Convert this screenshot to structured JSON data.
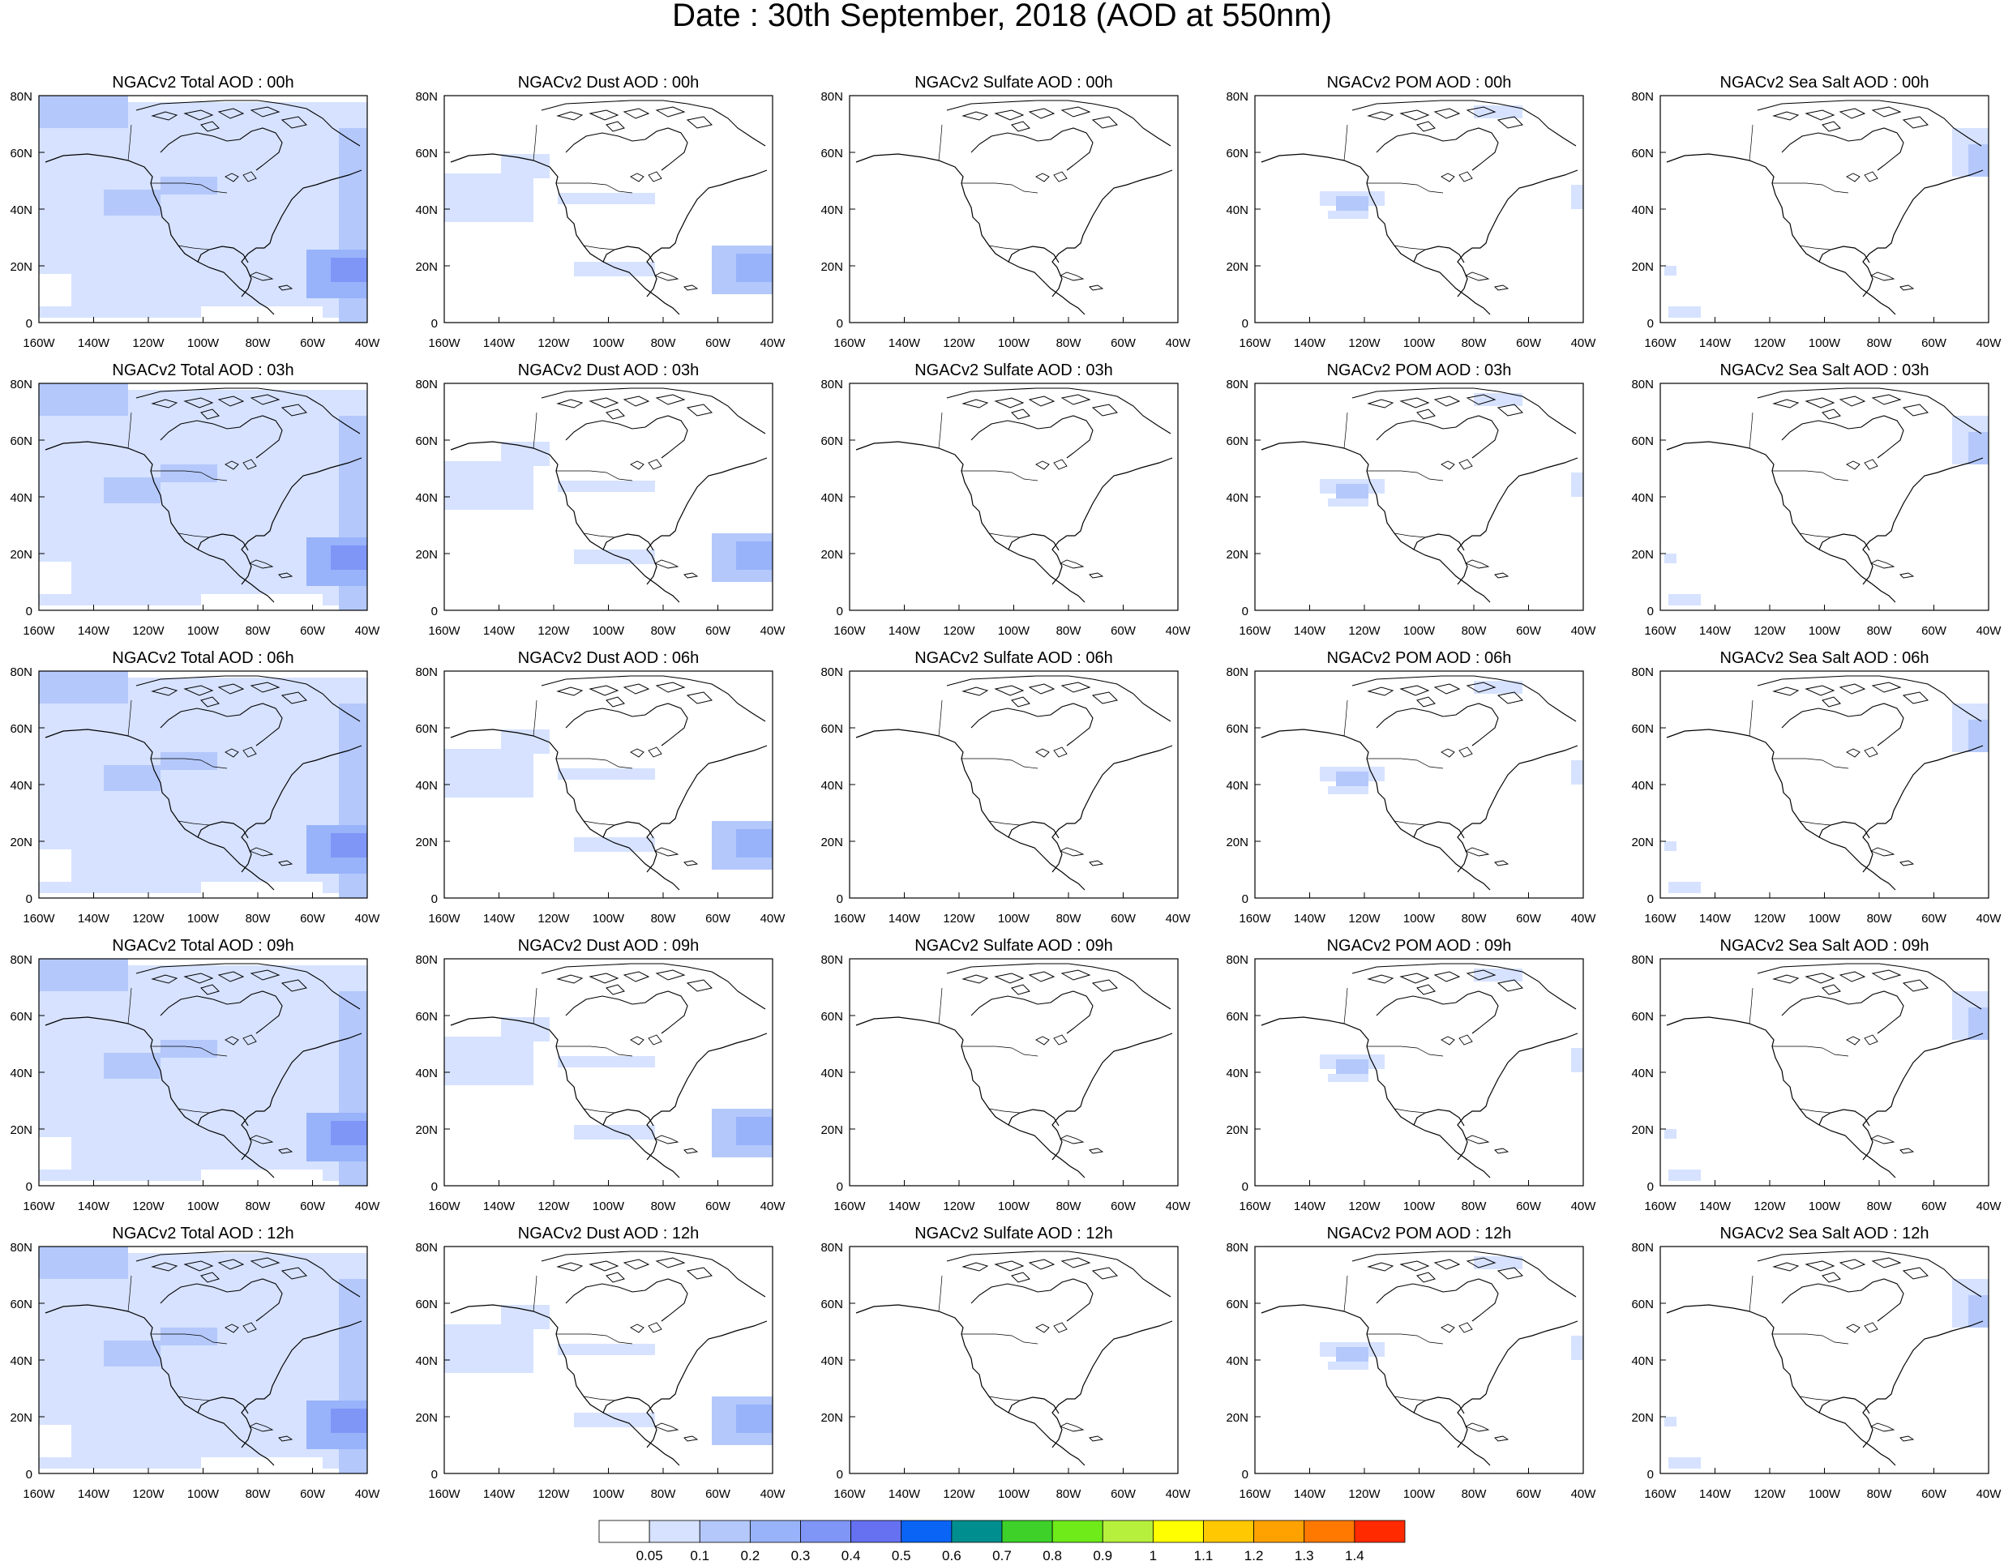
{
  "title": "Date : 30th September, 2018 (AOD at 550nm)",
  "x_tick_labels": [
    "160W",
    "140W",
    "120W",
    "100W",
    "80W",
    "60W",
    "40W"
  ],
  "y_tick_labels": [
    "80N",
    "60N",
    "40N",
    "20N",
    "0"
  ],
  "panels": [
    [
      "NGACv2 Total AOD : 00h",
      "NGACv2 Dust AOD : 00h",
      "NGACv2 Sulfate AOD : 00h",
      "NGACv2 POM AOD : 00h",
      "NGACv2 Sea Salt AOD : 00h"
    ],
    [
      "NGACv2 Total AOD : 03h",
      "NGACv2 Dust AOD : 03h",
      "NGACv2 Sulfate AOD : 03h",
      "NGACv2 POM AOD : 03h",
      "NGACv2 Sea Salt AOD : 03h"
    ],
    [
      "NGACv2 Total AOD : 06h",
      "NGACv2 Dust AOD : 06h",
      "NGACv2 Sulfate AOD : 06h",
      "NGACv2 POM AOD : 06h",
      "NGACv2 Sea Salt AOD : 06h"
    ],
    [
      "NGACv2 Total AOD : 09h",
      "NGACv2 Dust AOD : 09h",
      "NGACv2 Sulfate AOD : 09h",
      "NGACv2 POM AOD : 09h",
      "NGACv2 Sea Salt  AOD : 09h"
    ],
    [
      "NGACv2 Total AOD  : 12h",
      "NGACv2 Dust AOD : 12h",
      "NGACv2 Sulfate AOD : 12h",
      "NGACv2 POM  AOD : 12h",
      "NGACv2 Sea Salt  AOD : 12h"
    ]
  ],
  "colorbar": {
    "labels": [
      "0.05",
      "0.1",
      "0.2",
      "0.3",
      "0.4",
      "0.5",
      "0.6",
      "0.7",
      "0.8",
      "0.9",
      "1",
      "1.1",
      "1.2",
      "1.3",
      "1.4"
    ],
    "colors": [
      "#ffffff",
      "#d6e2ff",
      "#b4c8fb",
      "#98b3fa",
      "#7f96f6",
      "#6571f0",
      "#0a64f5",
      "#008e8e",
      "#3ed12a",
      "#6eeb19",
      "#b7f03c",
      "#ffff00",
      "#ffc800",
      "#ffa200",
      "#ff7800",
      "#ff2a00"
    ]
  },
  "colors": {
    "aod_low": "#d6e2ff",
    "aod_mid": "#b4c8fb",
    "aod_high": "#98b3fa",
    "aod_peak": "#7f96f6",
    "coast": "#000000"
  }
}
